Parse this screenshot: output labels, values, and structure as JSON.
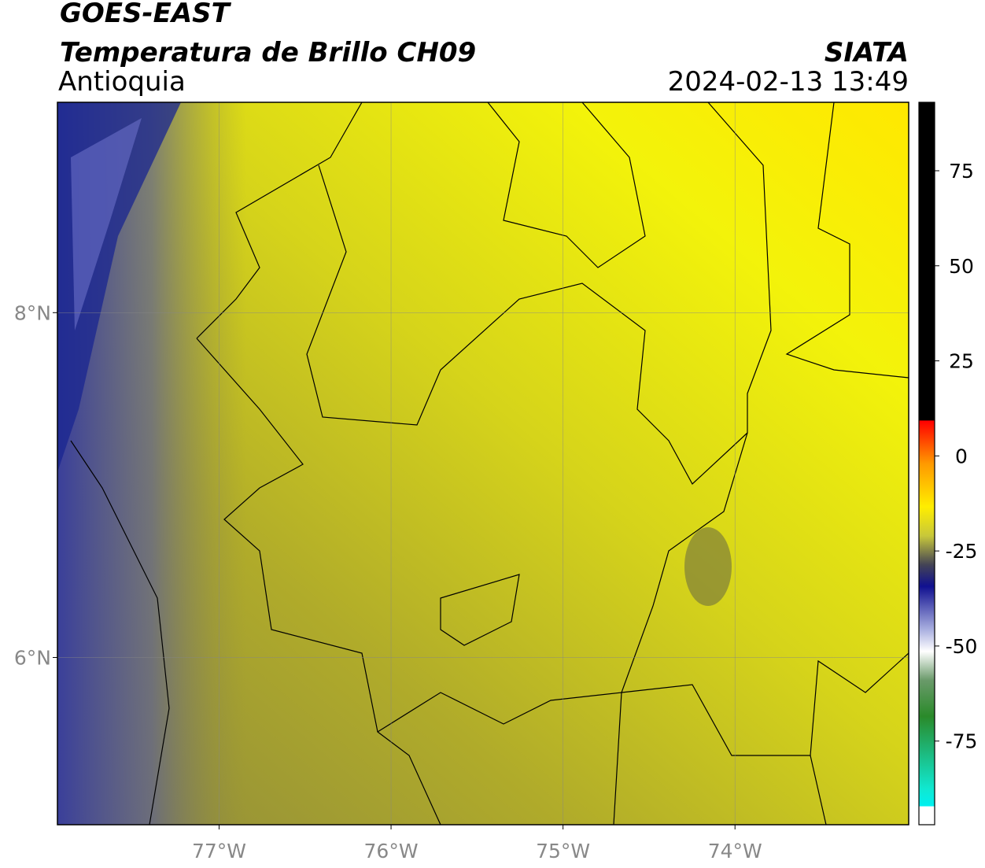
{
  "map": {
    "title": "GOES-EAST",
    "subtitle": "Temperatura de Brillo CH09",
    "region": "Antioquia",
    "source": "SIATA",
    "timestamp": "2024-02-13 13:49",
    "xlim": [
      -77.94,
      -72.99
    ],
    "ylim": [
      5.03,
      9.22
    ],
    "xticks": [
      {
        "value": -77,
        "label": "77°W"
      },
      {
        "value": -76,
        "label": "76°W"
      },
      {
        "value": -75,
        "label": "75°W"
      },
      {
        "value": -74,
        "label": "74°W"
      }
    ],
    "yticks": [
      {
        "value": 6,
        "label": "6°N"
      },
      {
        "value": 8,
        "label": "8°N"
      }
    ],
    "grid": true,
    "colorbar": {
      "lim": [
        -97,
        93
      ],
      "ticks": [
        -75,
        -50,
        -25,
        0,
        25,
        50,
        75
      ]
    }
  }
}
